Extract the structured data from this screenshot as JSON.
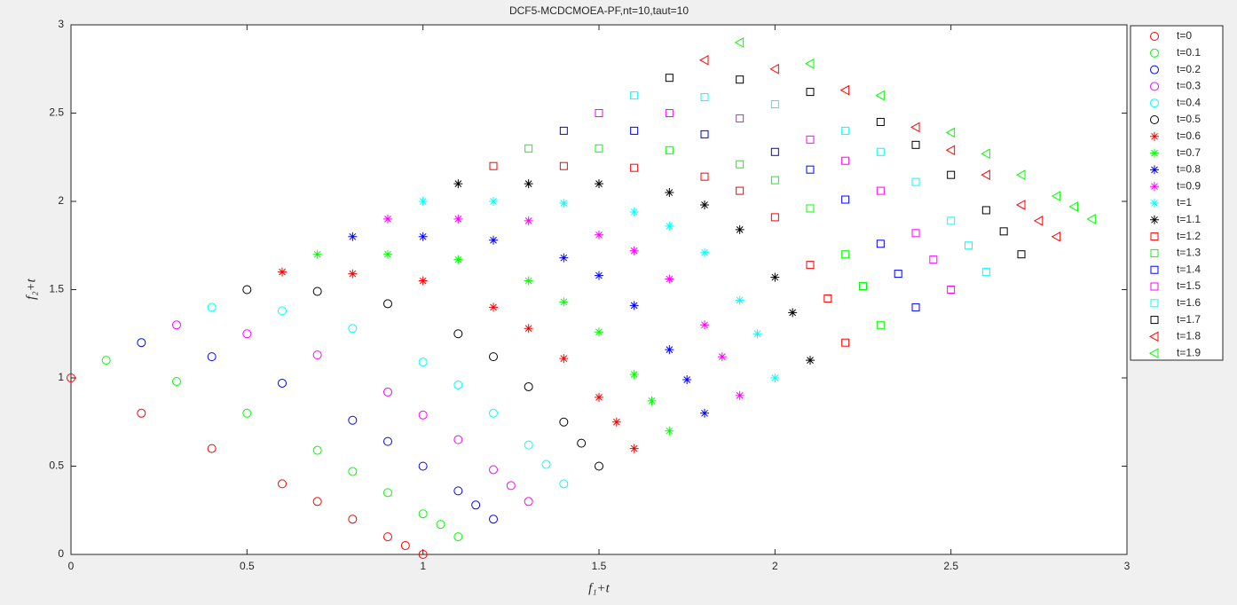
{
  "chart_data": {
    "type": "scatter",
    "title": "DCF5-MCDCMOEA-PF,nt=10,taut=10",
    "xlabel": "f₁+t",
    "ylabel": "f₂+t",
    "xlim": [
      0,
      3
    ],
    "ylim": [
      0,
      3
    ],
    "xticks": [
      0,
      0.5,
      1,
      1.5,
      2,
      2.5,
      3
    ],
    "yticks": [
      0,
      0.5,
      1,
      1.5,
      2,
      2.5,
      3
    ],
    "grid": false,
    "legend_position": "outside-right",
    "series": [
      {
        "name": "t=0",
        "color": "#ff0000",
        "marker": "o",
        "x": [
          0,
          0.2,
          0.4,
          0.6,
          0.7,
          0.8,
          0.9,
          0.95,
          1
        ],
        "values": [
          1,
          0.8,
          0.6,
          0.4,
          0.3,
          0.2,
          0.1,
          0.05,
          0
        ]
      },
      {
        "name": "t=0.1",
        "color": "#00ff00",
        "marker": "o",
        "x": [
          0.1,
          0.3,
          0.5,
          0.7,
          0.8,
          0.9,
          1,
          1.05,
          1.1
        ],
        "values": [
          1.1,
          0.98,
          0.8,
          0.59,
          0.47,
          0.35,
          0.23,
          0.17,
          0.1
        ]
      },
      {
        "name": "t=0.2",
        "color": "#0000ff",
        "marker": "o",
        "x": [
          0.2,
          0.4,
          0.6,
          0.8,
          0.9,
          1,
          1.1,
          1.15,
          1.2
        ],
        "values": [
          1.2,
          1.12,
          0.97,
          0.76,
          0.64,
          0.5,
          0.36,
          0.28,
          0.2
        ]
      },
      {
        "name": "t=0.3",
        "color": "#ff00ff",
        "marker": "o",
        "x": [
          0.3,
          0.5,
          0.7,
          0.9,
          1,
          1.1,
          1.2,
          1.25,
          1.3
        ],
        "values": [
          1.3,
          1.25,
          1.13,
          0.92,
          0.79,
          0.65,
          0.48,
          0.39,
          0.3
        ]
      },
      {
        "name": "t=0.4",
        "color": "#00ffff",
        "marker": "o",
        "x": [
          0.4,
          0.6,
          0.8,
          1,
          1.1,
          1.2,
          1.3,
          1.35,
          1.4
        ],
        "values": [
          1.4,
          1.38,
          1.28,
          1.09,
          0.96,
          0.8,
          0.62,
          0.51,
          0.4
        ]
      },
      {
        "name": "t=0.5",
        "color": "#000000",
        "marker": "o",
        "x": [
          0.5,
          0.7,
          0.9,
          1.1,
          1.2,
          1.3,
          1.4,
          1.45,
          1.5
        ],
        "values": [
          1.5,
          1.49,
          1.42,
          1.25,
          1.12,
          0.95,
          0.75,
          0.63,
          0.5
        ]
      },
      {
        "name": "t=0.6",
        "color": "#ff0000",
        "marker": "*",
        "x": [
          0.6,
          0.8,
          1,
          1.2,
          1.3,
          1.4,
          1.5,
          1.55,
          1.6
        ],
        "values": [
          1.6,
          1.59,
          1.55,
          1.4,
          1.28,
          1.11,
          0.89,
          0.75,
          0.6
        ]
      },
      {
        "name": "t=0.7",
        "color": "#00ff00",
        "marker": "*",
        "x": [
          0.7,
          0.9,
          1.1,
          1.3,
          1.4,
          1.5,
          1.6,
          1.65,
          1.7
        ],
        "values": [
          1.7,
          1.7,
          1.67,
          1.55,
          1.43,
          1.26,
          1.02,
          0.87,
          0.7
        ]
      },
      {
        "name": "t=0.8",
        "color": "#0000ff",
        "marker": "*",
        "x": [
          0.8,
          1,
          1.2,
          1.4,
          1.5,
          1.6,
          1.7,
          1.75,
          1.8
        ],
        "values": [
          1.8,
          1.8,
          1.78,
          1.68,
          1.58,
          1.41,
          1.16,
          0.99,
          0.8
        ]
      },
      {
        "name": "t=0.9",
        "color": "#ff00ff",
        "marker": "*",
        "x": [
          0.9,
          1.1,
          1.3,
          1.5,
          1.6,
          1.7,
          1.8,
          1.85,
          1.9
        ],
        "values": [
          1.9,
          1.9,
          1.89,
          1.81,
          1.72,
          1.56,
          1.3,
          1.12,
          0.9
        ]
      },
      {
        "name": "t=1",
        "color": "#00ffff",
        "marker": "*",
        "x": [
          1,
          1.2,
          1.4,
          1.6,
          1.7,
          1.8,
          1.9,
          1.95,
          2
        ],
        "values": [
          2,
          2,
          1.99,
          1.94,
          1.86,
          1.71,
          1.44,
          1.25,
          1
        ]
      },
      {
        "name": "t=1.1",
        "color": "#000000",
        "marker": "*",
        "x": [
          1.1,
          1.3,
          1.5,
          1.7,
          1.8,
          1.9,
          2,
          2.05,
          2.1
        ],
        "values": [
          2.1,
          2.1,
          2.1,
          2.05,
          1.98,
          1.84,
          1.57,
          1.37,
          1.1
        ]
      },
      {
        "name": "t=1.2",
        "color": "#ff0000",
        "marker": "s",
        "x": [
          1.2,
          1.4,
          1.6,
          1.8,
          1.9,
          2,
          2.1,
          2.15,
          2.2
        ],
        "values": [
          2.2,
          2.2,
          2.19,
          2.14,
          2.06,
          1.91,
          1.64,
          1.45,
          1.2
        ]
      },
      {
        "name": "t=1.3",
        "color": "#00ff00",
        "marker": "s",
        "x": [
          1.3,
          1.5,
          1.7,
          1.9,
          2,
          2.1,
          2.2,
          2.25,
          2.3
        ],
        "values": [
          2.3,
          2.3,
          2.29,
          2.21,
          2.12,
          1.96,
          1.7,
          1.52,
          1.3
        ]
      },
      {
        "name": "t=1.4",
        "color": "#0000ff",
        "marker": "s",
        "x": [
          1.4,
          1.6,
          1.8,
          2,
          2.1,
          2.2,
          2.3,
          2.35,
          2.4
        ],
        "values": [
          2.4,
          2.4,
          2.38,
          2.28,
          2.18,
          2.01,
          1.76,
          1.59,
          1.4
        ]
      },
      {
        "name": "t=1.5",
        "color": "#ff00ff",
        "marker": "s",
        "x": [
          1.5,
          1.7,
          1.9,
          2.1,
          2.2,
          2.3,
          2.4,
          2.45,
          2.5
        ],
        "values": [
          2.5,
          2.5,
          2.47,
          2.35,
          2.23,
          2.06,
          1.82,
          1.67,
          1.5
        ]
      },
      {
        "name": "t=1.6",
        "color": "#00ffff",
        "marker": "s",
        "x": [
          1.6,
          1.8,
          2,
          2.2,
          2.3,
          2.4,
          2.5,
          2.55,
          2.6
        ],
        "values": [
          2.6,
          2.59,
          2.55,
          2.4,
          2.28,
          2.11,
          1.89,
          1.75,
          1.6
        ]
      },
      {
        "name": "t=1.7",
        "color": "#000000",
        "marker": "s",
        "x": [
          1.7,
          1.9,
          2.1,
          2.3,
          2.4,
          2.5,
          2.6,
          2.65,
          2.7
        ],
        "values": [
          2.7,
          2.69,
          2.62,
          2.45,
          2.32,
          2.15,
          1.95,
          1.83,
          1.7
        ]
      },
      {
        "name": "t=1.8",
        "color": "#ff0000",
        "marker": "<",
        "x": [
          1.8,
          2,
          2.2,
          2.4,
          2.5,
          2.6,
          2.7,
          2.75,
          2.8
        ],
        "values": [
          2.8,
          2.75,
          2.63,
          2.42,
          2.29,
          2.15,
          1.98,
          1.89,
          1.8
        ]
      },
      {
        "name": "t=1.9",
        "color": "#00ff00",
        "marker": "<",
        "x": [
          1.9,
          2.1,
          2.3,
          2.5,
          2.6,
          2.7,
          2.8,
          2.85,
          2.9
        ],
        "values": [
          2.9,
          2.78,
          2.6,
          2.39,
          2.27,
          2.15,
          2.03,
          1.97,
          1.9
        ]
      }
    ]
  }
}
